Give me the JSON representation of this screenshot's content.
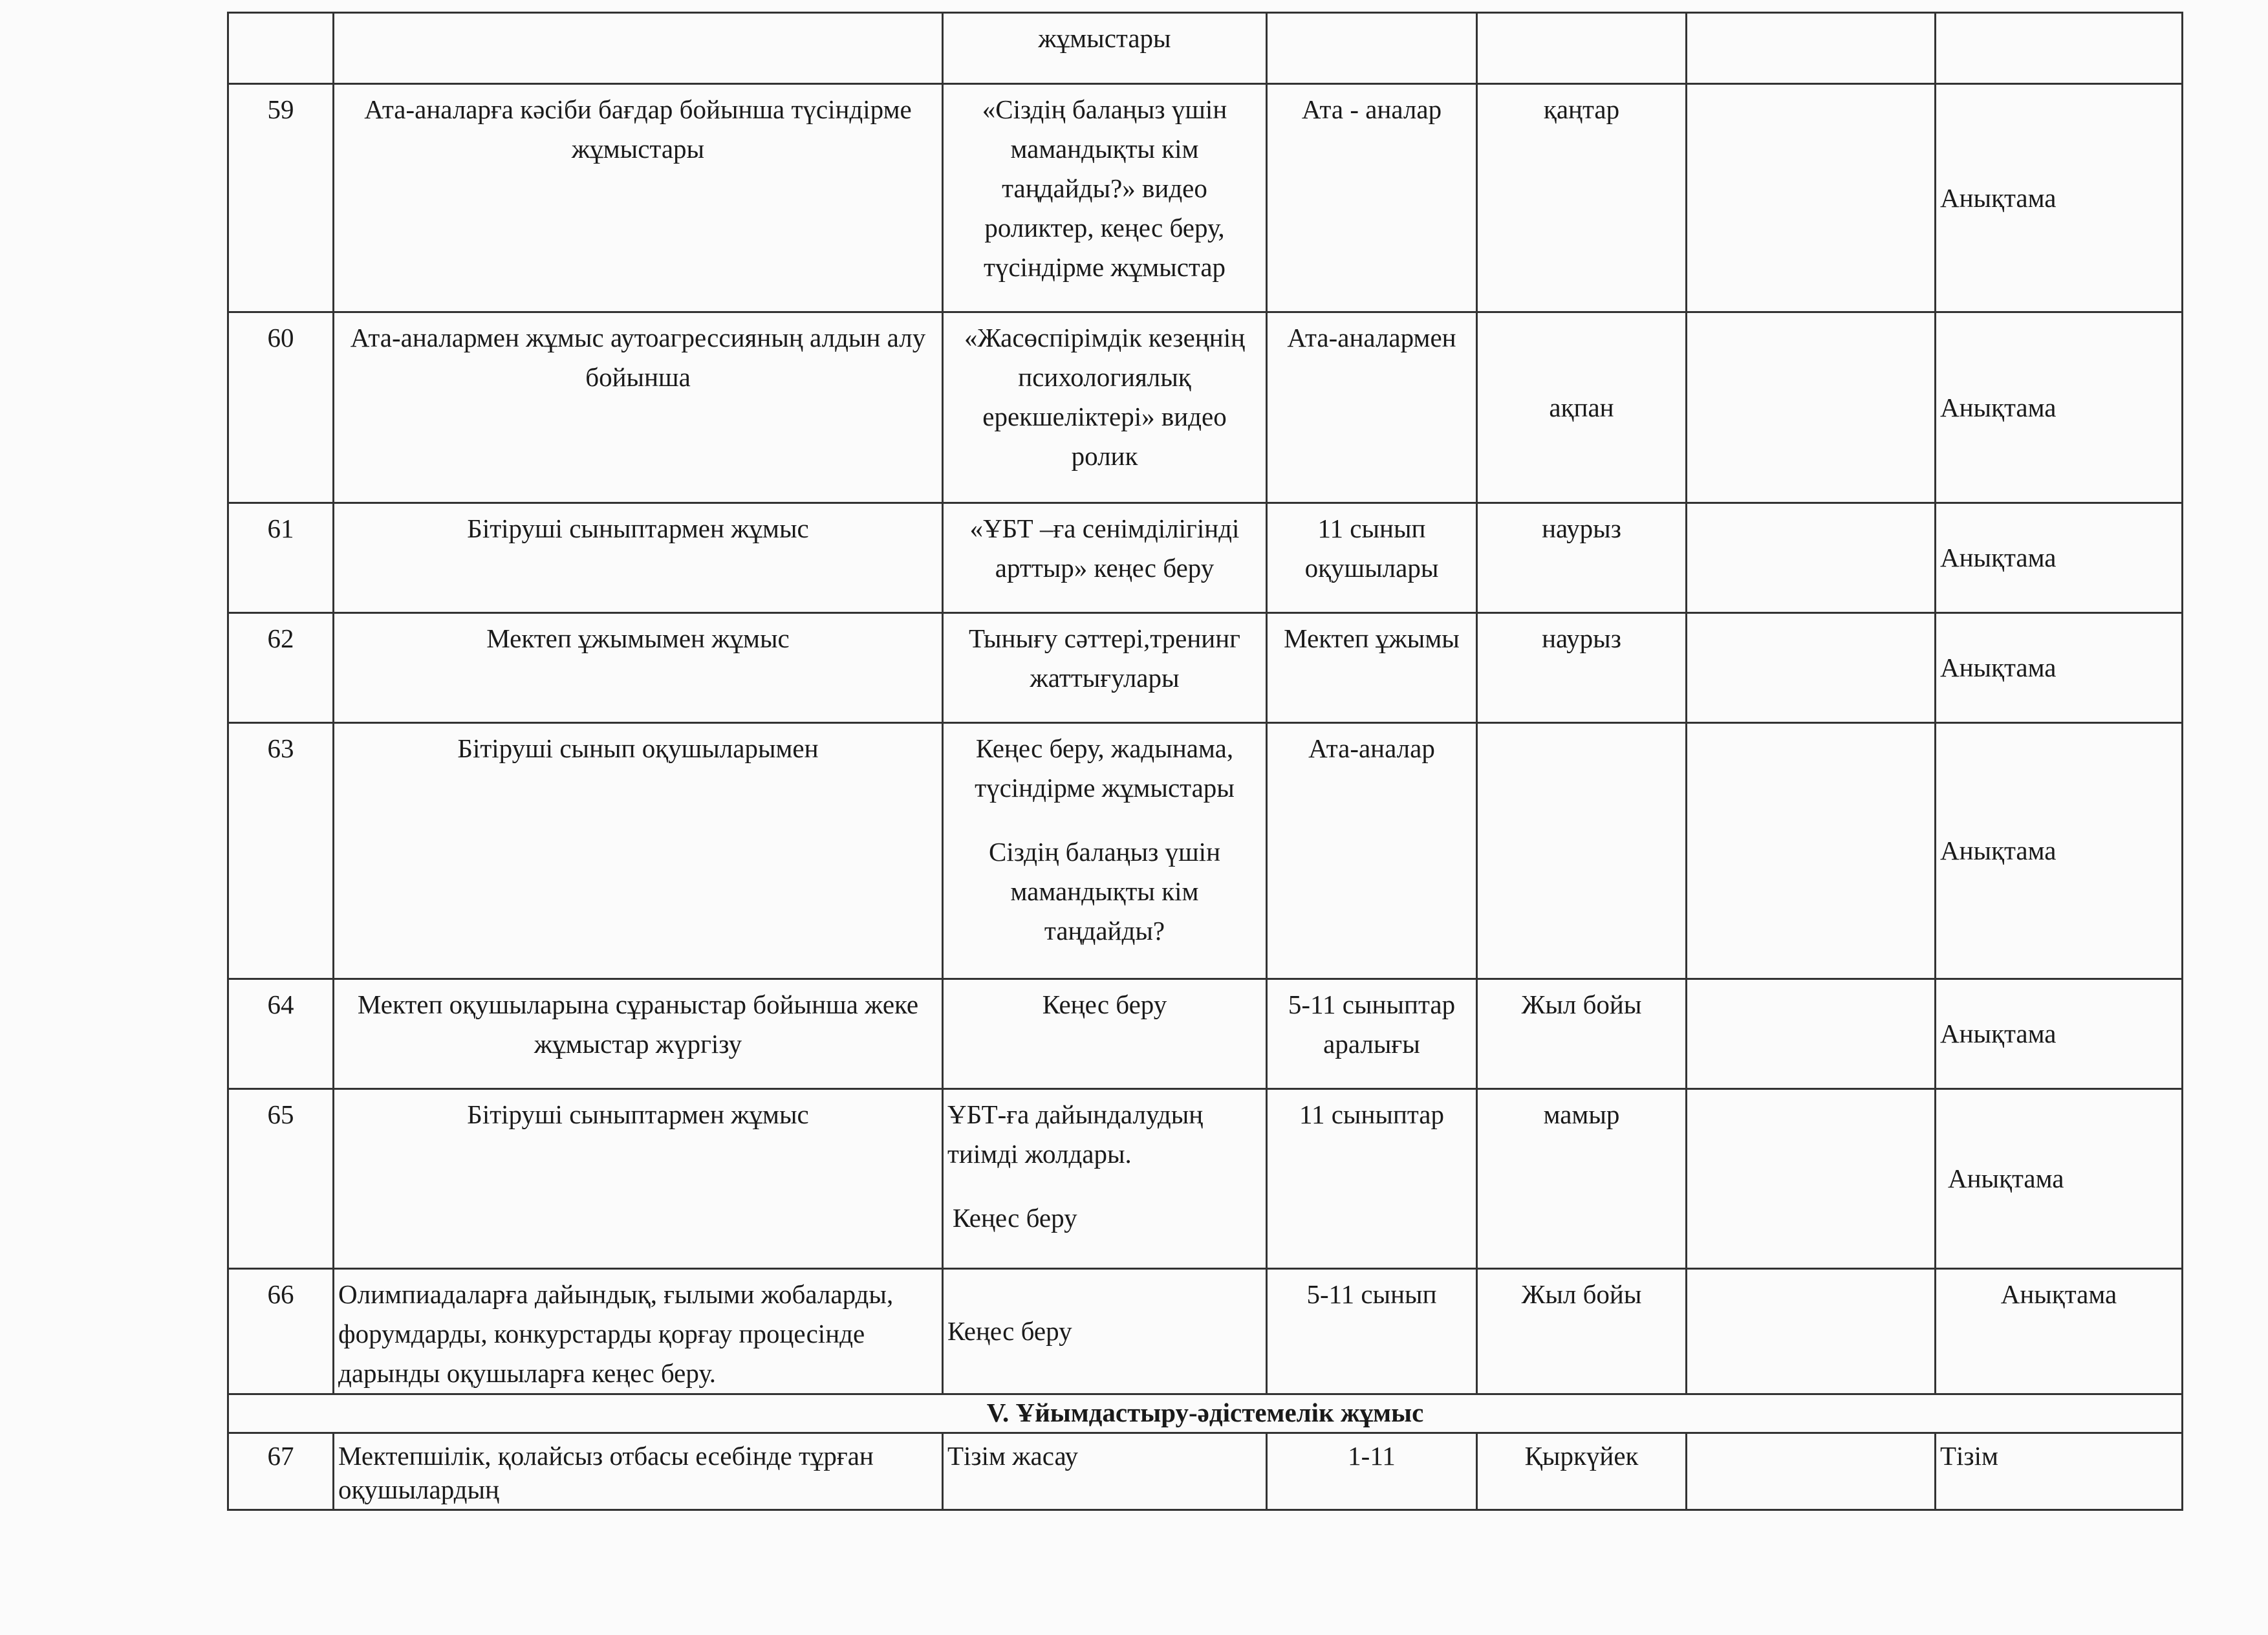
{
  "rows": [
    {
      "no": "",
      "topic": "",
      "form": [
        "жұмыстары"
      ],
      "audience": "",
      "date": "",
      "responsible": "",
      "result": ""
    },
    {
      "no": "59",
      "topic": "Ата-аналарға кәсіби бағдар бойынша түсіндірме жұмыстары",
      "form": [
        "«Сіздің балаңыз үшін мамандықты кім таңдайды?»  видео роликтер, кеңес беру, түсіндірме жұмыстар"
      ],
      "audience": "Ата - аналар",
      "date": "қаңтар",
      "responsible": "",
      "result": "Анықтама"
    },
    {
      "no": "60",
      "topic": "Ата-аналармен жұмыс аутоагрессияның алдын алу бойынша",
      "form": [
        "«Жасөспірімдік кезеңнің психологиялық ерекшеліктері» видео ролик"
      ],
      "audience": "Ата-аналармен",
      "date": "ақпан",
      "responsible": "",
      "result": "Анықтама"
    },
    {
      "no": "61",
      "topic": "Бітіруші сыныптармен жұмыс",
      "form": [
        "«ҰБТ –ға сенімділігінді арттыр» кеңес беру"
      ],
      "audience": "11 сынып оқушылары",
      "date": "наурыз",
      "responsible": "",
      "result": "Анықтама"
    },
    {
      "no": "62",
      "topic": "Мектеп ұжымымен жұмыс",
      "form": [
        "Тынығу сәттері,тренинг жаттығулары"
      ],
      "audience": "Мектеп ұжымы",
      "date": "наурыз",
      "responsible": "",
      "result": "Анықтама"
    },
    {
      "no": "63",
      "topic": "Бітіруші сынып оқушыларымен",
      "form": [
        "Кеңес беру, жадынама, түсіндірме жұмыстары",
        "Сіздің балаңыз үшін мамандықты кім таңдайды?"
      ],
      "audience": "Ата-аналар",
      "date": "",
      "responsible": "",
      "result": "Анықтама"
    },
    {
      "no": "64",
      "topic": "Мектеп оқушыларына сұраныстар бойынша жеке жұмыстар жүргізу",
      "form": [
        "Кеңес беру"
      ],
      "audience": "5-11 сыныптар аралығы",
      "date": "Жыл бойы",
      "responsible": "",
      "result": "Анықтама"
    },
    {
      "no": "65",
      "topic": "Бітіруші сыныптармен жұмыс",
      "form": [
        "ҰБТ-ға дайындалудың тиімді жолдары.",
        "Кеңес беру"
      ],
      "audience": "11 сыныптар",
      "date": "мамыр",
      "responsible": "",
      "result": "Анықтама"
    },
    {
      "no": "66",
      "topic": "Олимпиадаларға дайындық, ғылыми жобаларды, форумдарды, конкурстарды қорғау процесінде дарынды оқушыларға кеңес беру.",
      "form": [
        "Кеңес беру"
      ],
      "audience": "5-11 сынып",
      "date": "Жыл бойы",
      "responsible": "",
      "result": "Анықтама"
    }
  ],
  "section": "V. Ұйымдастыру-әдістемелік жұмыс",
  "row67": {
    "no": "67",
    "topic": "Мектепшілік, қолайсыз отбасы есебінде тұрған оқушылардың",
    "form": "Тізім жасау",
    "audience": "1-11",
    "date": "Қыркүйек",
    "responsible": "",
    "result": "Тізім"
  }
}
